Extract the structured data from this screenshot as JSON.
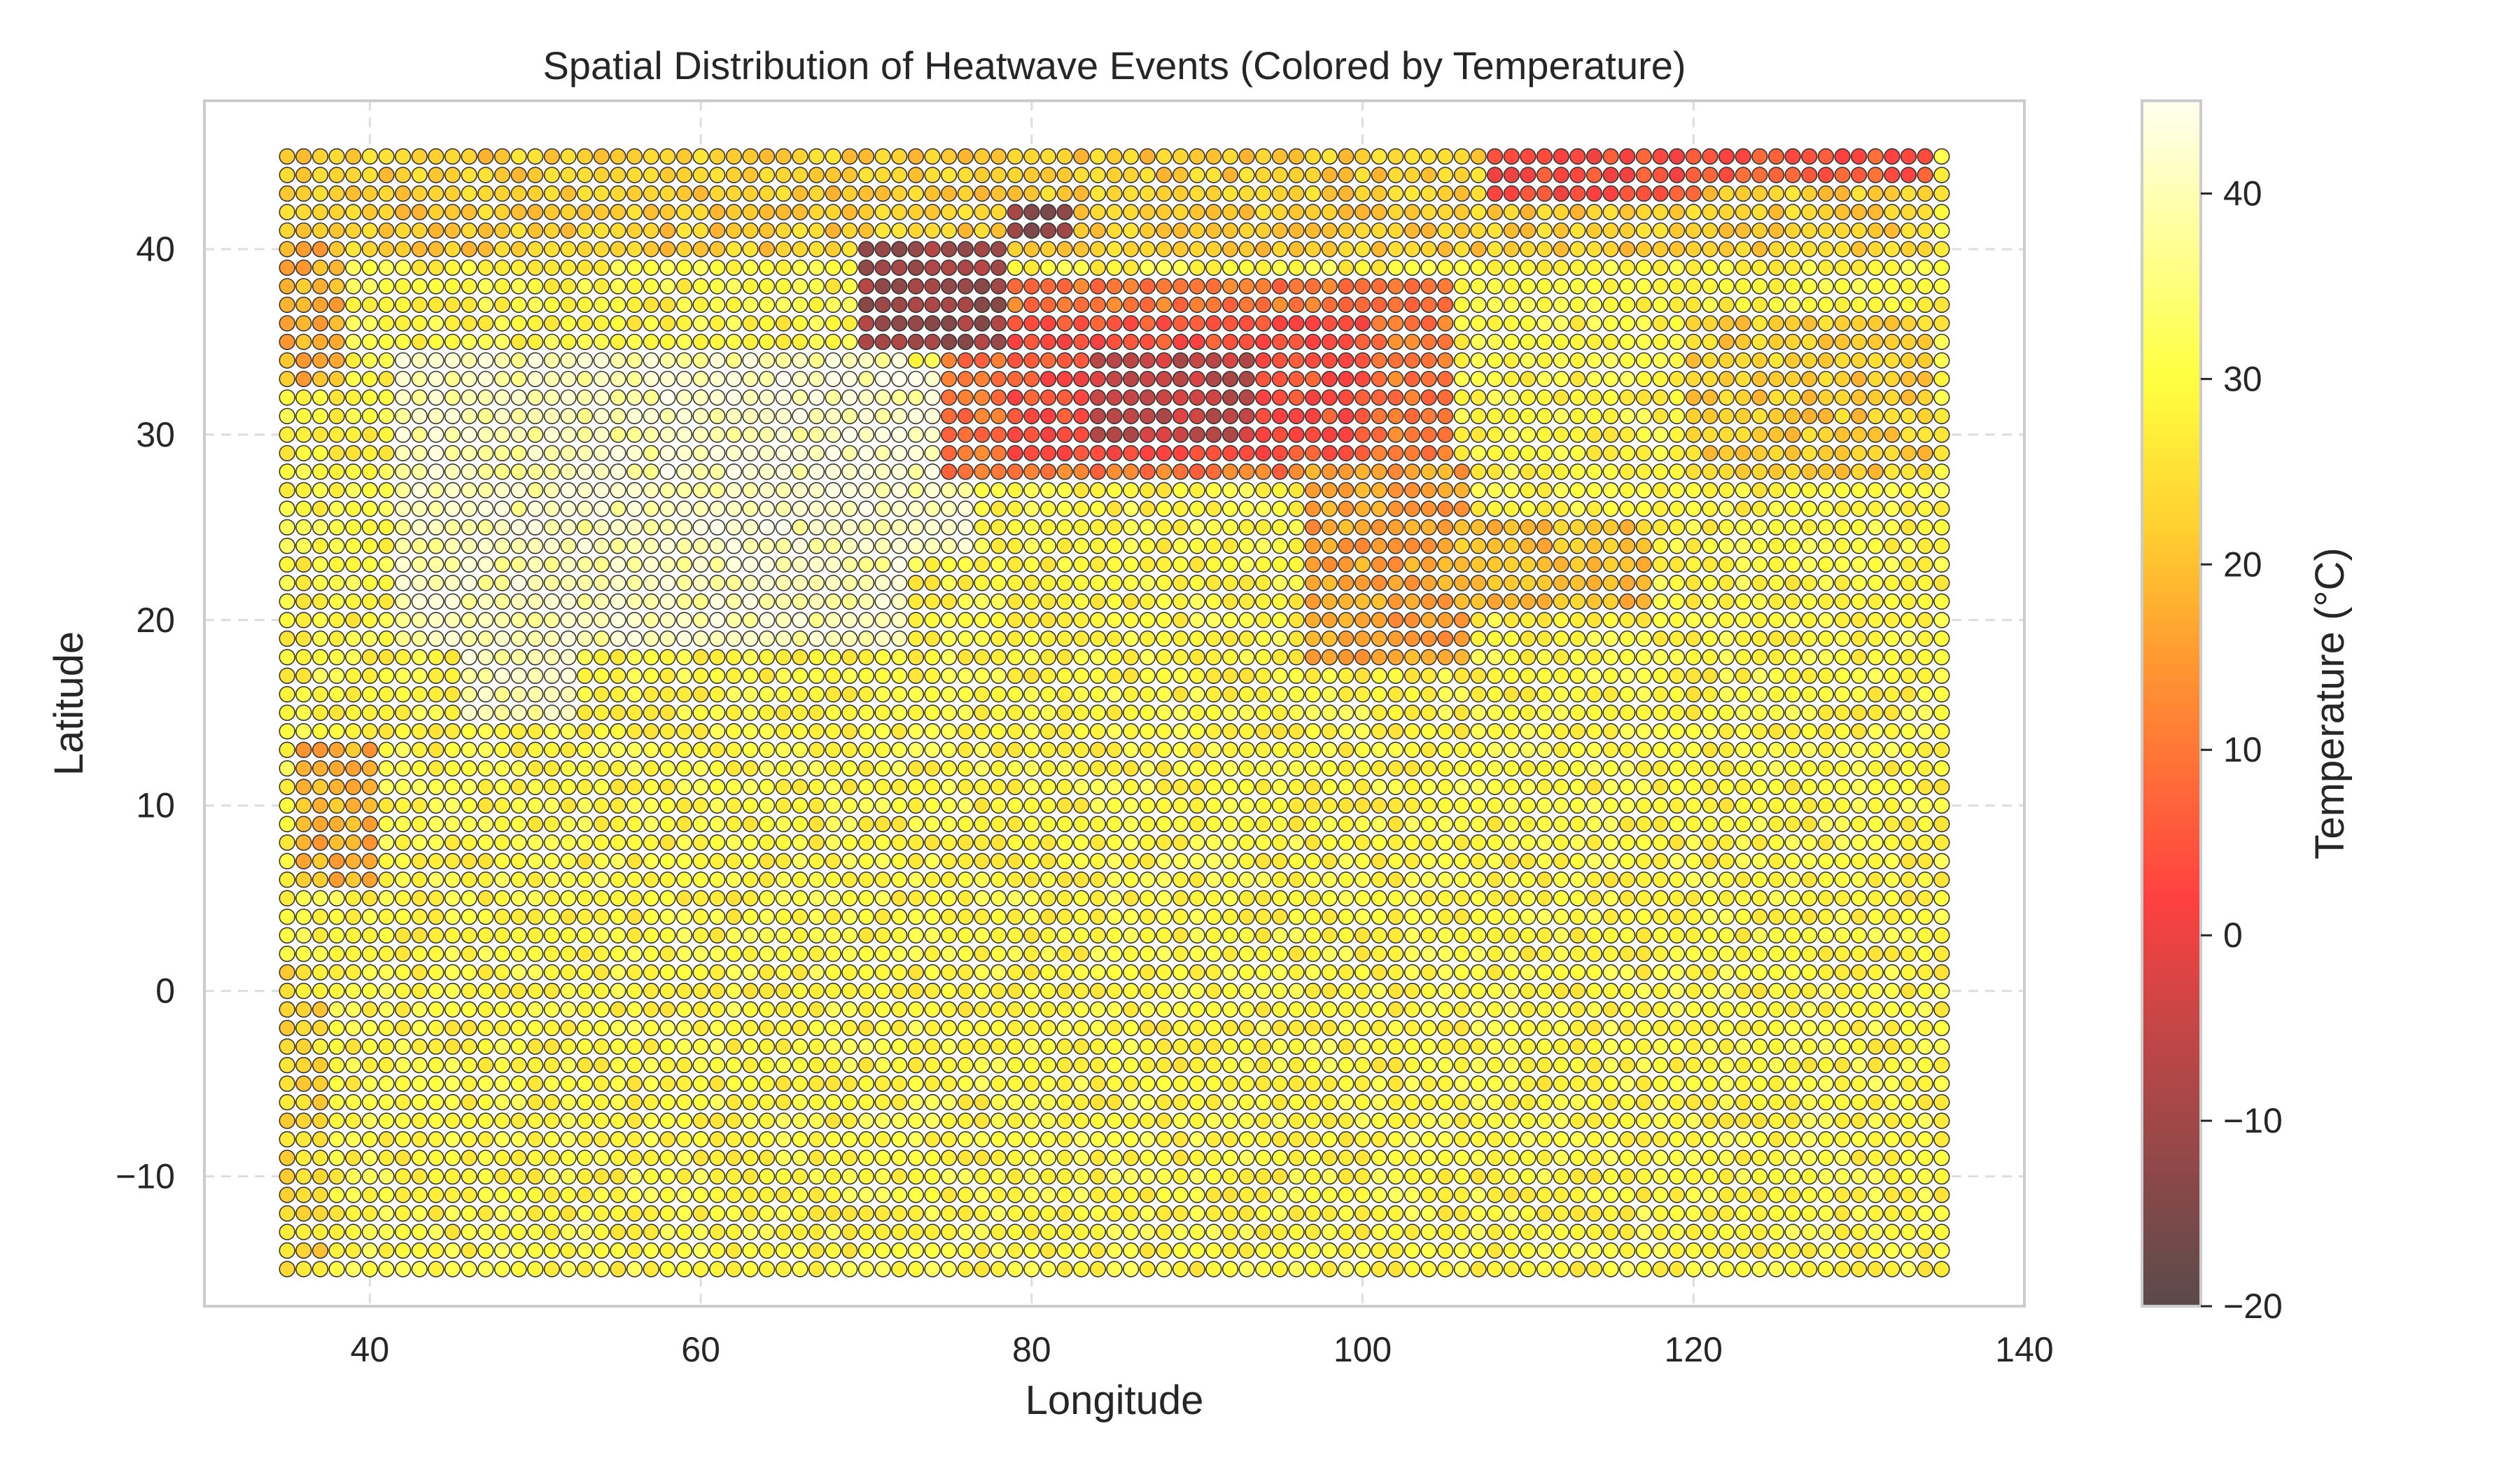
{
  "chart_data": {
    "type": "scatter",
    "title": "Spatial Distribution of Heatwave Events (Colored by Temperature)",
    "xlabel": "Longitude",
    "ylabel": "Latitude",
    "xlim": [
      30,
      140
    ],
    "ylim": [
      -17,
      48
    ],
    "xticks": [
      40,
      60,
      80,
      100,
      120,
      140
    ],
    "yticks": [
      -10,
      0,
      10,
      20,
      30,
      40
    ],
    "grid": true,
    "grid_style": "dashed",
    "points_grid": {
      "lon_start": 35,
      "lon_end": 135,
      "lon_step": 1,
      "lat_start": -15,
      "lat_end": 45,
      "lat_step": 1,
      "default_value": 29
    },
    "regions": [
      {
        "lon": [
          42,
          72
        ],
        "lat": [
          19,
          34
        ],
        "value": 40
      },
      {
        "lon": [
          58,
          76
        ],
        "lat": [
          24,
          33
        ],
        "value": 41
      },
      {
        "lon": [
          46,
          52
        ],
        "lat": [
          15,
          19
        ],
        "value": 40
      },
      {
        "lon": [
          35,
          134
        ],
        "lat": [
          40,
          45
        ],
        "value": 22
      },
      {
        "lon": [
          35,
          38
        ],
        "lat": [
          33,
          40
        ],
        "value": 18
      },
      {
        "lon": [
          75,
          105
        ],
        "lat": [
          28,
          38
        ],
        "value": 10
      },
      {
        "lon": [
          79,
          100
        ],
        "lat": [
          29,
          36
        ],
        "value": 4
      },
      {
        "lon": [
          84,
          93
        ],
        "lat": [
          30,
          34
        ],
        "value": -5
      },
      {
        "lon": [
          70,
          78
        ],
        "lat": [
          35,
          40
        ],
        "value": -10
      },
      {
        "lon": [
          79,
          82
        ],
        "lat": [
          41,
          42
        ],
        "value": -12
      },
      {
        "lon": [
          97,
          106
        ],
        "lat": [
          18,
          28
        ],
        "value": 16
      },
      {
        "lon": [
          106,
          117
        ],
        "lat": [
          21,
          25
        ],
        "value": 20
      },
      {
        "lon": [
          120,
          134
        ],
        "lat": [
          28,
          36
        ],
        "value": 22
      },
      {
        "lon": [
          108,
          120
        ],
        "lat": [
          43,
          45
        ],
        "value": 4
      },
      {
        "lon": [
          120,
          134
        ],
        "lat": [
          44,
          45
        ],
        "value": 6
      },
      {
        "lon": [
          36,
          40
        ],
        "lat": [
          6,
          13
        ],
        "value": 18
      },
      {
        "lon": [
          35,
          37
        ],
        "lat": [
          -15,
          1
        ],
        "value": 24
      }
    ],
    "colorbar": {
      "label": "Temperature (°C)",
      "min": -20,
      "max": 45,
      "ticks": [
        -20,
        -10,
        0,
        10,
        20,
        30,
        40
      ],
      "colormap": [
        "#5a4a4a",
        "#c44646",
        "#ff4040",
        "#ff9a30",
        "#ffd030",
        "#ffff40",
        "#fffff0"
      ],
      "colormap_stops": [
        -20,
        -5,
        2,
        15,
        22,
        30,
        45
      ]
    },
    "marker_edge_color": "#333333"
  }
}
